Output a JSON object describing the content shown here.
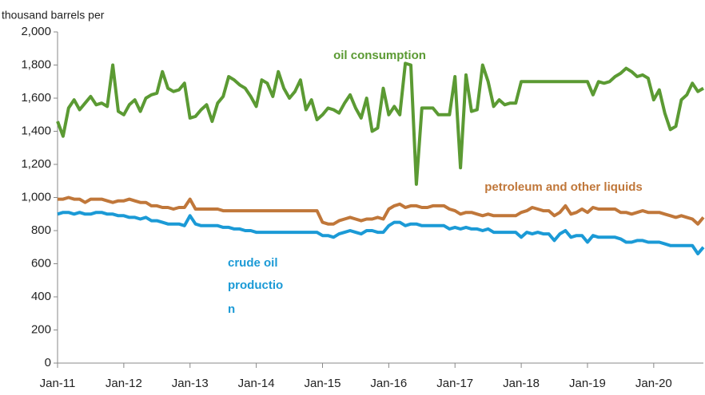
{
  "chart_data": {
    "type": "line",
    "y_label": "thousand barrels per",
    "categories": [
      "Jan-11",
      null,
      null,
      null,
      null,
      null,
      null,
      null,
      null,
      null,
      null,
      null,
      "Jan-12",
      null,
      null,
      null,
      null,
      null,
      null,
      null,
      null,
      null,
      null,
      null,
      "Jan-13",
      null,
      null,
      null,
      null,
      null,
      null,
      null,
      null,
      null,
      null,
      null,
      "Jan-14",
      null,
      null,
      null,
      null,
      null,
      null,
      null,
      null,
      null,
      null,
      null,
      "Jan-15",
      null,
      null,
      null,
      null,
      null,
      null,
      null,
      null,
      null,
      null,
      null,
      "Jan-16",
      null,
      null,
      null,
      null,
      null,
      null,
      null,
      null,
      null,
      null,
      null,
      "Jan-17",
      null,
      null,
      null,
      null,
      null,
      null,
      null,
      null,
      null,
      null,
      null,
      "Jan-18",
      null,
      null,
      null,
      null,
      null,
      null,
      null,
      null,
      null,
      null,
      null,
      "Jan-19",
      null,
      null,
      null,
      null,
      null,
      null,
      null,
      null,
      null,
      null,
      null,
      "Jan-20",
      null,
      null,
      null,
      null,
      null,
      null,
      null,
      null,
      null
    ],
    "series": [
      {
        "name": "oil consumption",
        "color": "#5b9a33",
        "values": [
          1460,
          1370,
          1540,
          1590,
          1530,
          1570,
          1610,
          1560,
          1570,
          1550,
          1800,
          1520,
          1500,
          1560,
          1590,
          1520,
          1600,
          1620,
          1630,
          1760,
          1660,
          1640,
          1650,
          1690,
          1480,
          1490,
          1530,
          1560,
          1460,
          1570,
          1610,
          1730,
          1710,
          1680,
          1660,
          1610,
          1550,
          1710,
          1690,
          1610,
          1760,
          1660,
          1600,
          1640,
          1710,
          1530,
          1590,
          1470,
          1500,
          1540,
          1530,
          1510,
          1570,
          1620,
          1540,
          1480,
          1600,
          1400,
          1420,
          1660,
          1500,
          1550,
          1500,
          1810,
          1800,
          1080,
          1540,
          1540,
          1540,
          1500,
          1500,
          1500,
          1730,
          1180,
          1740,
          1520,
          1530,
          1800,
          1700,
          1550,
          1590,
          1560,
          1570,
          1570,
          1700,
          1700,
          1700,
          1700,
          1700,
          1700,
          1700,
          1700,
          1700,
          1700,
          1700,
          1700,
          1700,
          1620,
          1700,
          1690,
          1700,
          1730,
          1750,
          1780,
          1760,
          1730,
          1740,
          1720,
          1590,
          1650,
          1510,
          1410,
          1430,
          1590,
          1620,
          1690,
          1640,
          1660
        ]
      },
      {
        "name": "petroleum and other liquids",
        "color": "#c0773a",
        "values": [
          990,
          990,
          1000,
          990,
          990,
          970,
          990,
          990,
          990,
          980,
          970,
          980,
          980,
          990,
          980,
          970,
          970,
          950,
          950,
          940,
          940,
          930,
          940,
          940,
          990,
          930,
          930,
          930,
          930,
          930,
          920,
          920,
          920,
          920,
          920,
          920,
          920,
          920,
          920,
          920,
          920,
          920,
          920,
          920,
          920,
          920,
          920,
          920,
          850,
          840,
          840,
          860,
          870,
          880,
          870,
          860,
          870,
          870,
          880,
          870,
          930,
          950,
          960,
          940,
          950,
          950,
          940,
          940,
          950,
          950,
          950,
          930,
          920,
          900,
          910,
          910,
          900,
          890,
          900,
          890,
          890,
          890,
          890,
          890,
          910,
          920,
          940,
          930,
          920,
          920,
          890,
          910,
          950,
          900,
          910,
          930,
          910,
          940,
          930,
          930,
          930,
          930,
          910,
          910,
          900,
          910,
          920,
          910,
          910,
          910,
          900,
          890,
          880,
          890,
          880,
          870,
          840,
          880
        ]
      },
      {
        "name": "crude oil production",
        "label_lines": [
          "crude oil",
          "productio",
          "n"
        ],
        "color": "#1b9ad6",
        "values": [
          900,
          910,
          910,
          900,
          910,
          900,
          900,
          910,
          910,
          900,
          900,
          890,
          890,
          880,
          880,
          870,
          880,
          860,
          860,
          850,
          840,
          840,
          840,
          830,
          890,
          840,
          830,
          830,
          830,
          830,
          820,
          820,
          810,
          810,
          800,
          800,
          790,
          790,
          790,
          790,
          790,
          790,
          790,
          790,
          790,
          790,
          790,
          790,
          770,
          770,
          760,
          780,
          790,
          800,
          790,
          780,
          800,
          800,
          790,
          790,
          830,
          850,
          850,
          830,
          840,
          840,
          830,
          830,
          830,
          830,
          830,
          810,
          820,
          810,
          820,
          810,
          810,
          800,
          810,
          790,
          790,
          790,
          790,
          790,
          760,
          790,
          780,
          790,
          780,
          780,
          740,
          780,
          800,
          760,
          770,
          770,
          730,
          770,
          760,
          760,
          760,
          760,
          750,
          730,
          730,
          740,
          740,
          730,
          730,
          730,
          720,
          710,
          710,
          710,
          710,
          710,
          660,
          700
        ]
      }
    ],
    "ylim": [
      0,
      2000
    ],
    "yticks": [
      0,
      200,
      400,
      600,
      800,
      {
        "value": 1000,
        "label": "1,000"
      },
      {
        "value": 1200,
        "label": "1,200"
      },
      {
        "value": 1400,
        "label": "1,400"
      },
      {
        "value": 1600,
        "label": "1,600"
      },
      {
        "value": 1800,
        "label": "1,800"
      },
      {
        "value": 2000,
        "label": "2,000"
      }
    ],
    "grid": false
  }
}
